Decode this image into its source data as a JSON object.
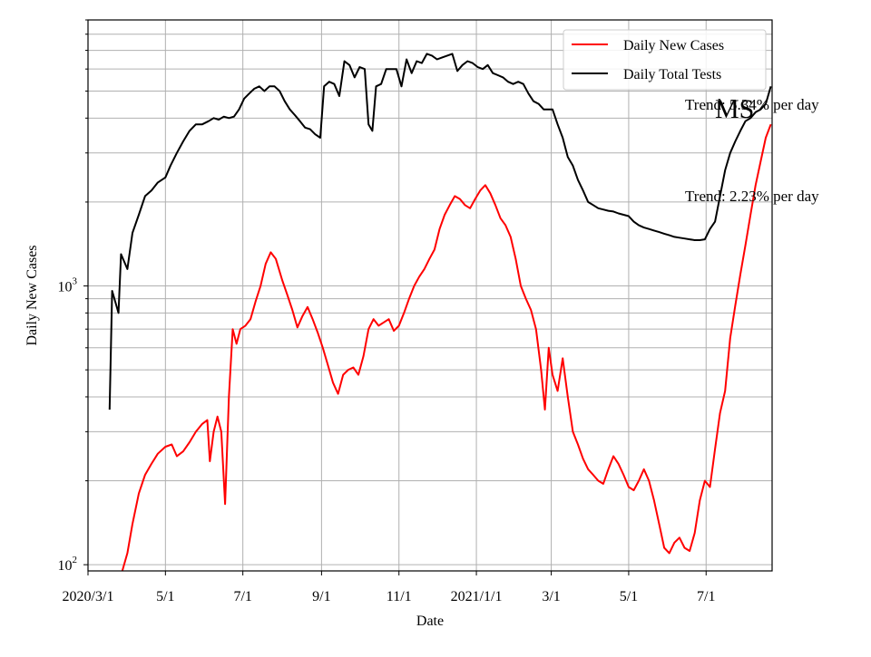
{
  "chart_data": {
    "type": "line",
    "title": "",
    "state_label": "MS",
    "xlabel": "Date",
    "ylabel": "Daily New Cases",
    "yscale": "log",
    "ylim": [
      95,
      9000
    ],
    "xlim": [
      "2020-03-01",
      "2021-08-22"
    ],
    "grid": true,
    "legend_position": "top-right",
    "x_ticks": [
      {
        "date": "2020-03-01",
        "label": "2020/3/1"
      },
      {
        "date": "2020-05-01",
        "label": "5/1"
      },
      {
        "date": "2020-07-01",
        "label": "7/1"
      },
      {
        "date": "2020-09-01",
        "label": "9/1"
      },
      {
        "date": "2020-11-01",
        "label": "11/1"
      },
      {
        "date": "2021-01-01",
        "label": "2021/1/1"
      },
      {
        "date": "2021-03-01",
        "label": "3/1"
      },
      {
        "date": "2021-05-01",
        "label": "5/1"
      },
      {
        "date": "2021-07-01",
        "label": "7/1"
      }
    ],
    "y_ticks": [
      {
        "value": 100,
        "label": "10",
        "exp": "2"
      },
      {
        "value": 1000,
        "label": "10",
        "exp": "3"
      }
    ],
    "annotations": [
      {
        "text": "Trend: 5.34% per day",
        "series": "Daily Total Tests"
      },
      {
        "text": "Trend: 2.23% per day",
        "series": "Daily New Cases"
      }
    ],
    "series": [
      {
        "name": "Daily New Cases",
        "color": "#ff0000",
        "points": [
          [
            "2020-03-28",
            95
          ],
          [
            "2020-04-01",
            110
          ],
          [
            "2020-04-05",
            140
          ],
          [
            "2020-04-10",
            180
          ],
          [
            "2020-04-15",
            210
          ],
          [
            "2020-04-20",
            230
          ],
          [
            "2020-04-25",
            250
          ],
          [
            "2020-05-01",
            265
          ],
          [
            "2020-05-06",
            270
          ],
          [
            "2020-05-10",
            245
          ],
          [
            "2020-05-15",
            255
          ],
          [
            "2020-05-20",
            275
          ],
          [
            "2020-05-25",
            300
          ],
          [
            "2020-05-30",
            320
          ],
          [
            "2020-06-03",
            330
          ],
          [
            "2020-06-05",
            235
          ],
          [
            "2020-06-08",
            300
          ],
          [
            "2020-06-11",
            340
          ],
          [
            "2020-06-14",
            300
          ],
          [
            "2020-06-17",
            165
          ],
          [
            "2020-06-20",
            400
          ],
          [
            "2020-06-23",
            700
          ],
          [
            "2020-06-26",
            620
          ],
          [
            "2020-06-29",
            700
          ],
          [
            "2020-07-03",
            720
          ],
          [
            "2020-07-07",
            760
          ],
          [
            "2020-07-11",
            880
          ],
          [
            "2020-07-15",
            1000
          ],
          [
            "2020-07-19",
            1200
          ],
          [
            "2020-07-23",
            1320
          ],
          [
            "2020-07-27",
            1250
          ],
          [
            "2020-08-01",
            1050
          ],
          [
            "2020-08-05",
            930
          ],
          [
            "2020-08-09",
            820
          ],
          [
            "2020-08-13",
            710
          ],
          [
            "2020-08-17",
            780
          ],
          [
            "2020-08-21",
            840
          ],
          [
            "2020-08-25",
            760
          ],
          [
            "2020-08-29",
            680
          ],
          [
            "2020-09-02",
            600
          ],
          [
            "2020-09-06",
            520
          ],
          [
            "2020-09-10",
            450
          ],
          [
            "2020-09-14",
            410
          ],
          [
            "2020-09-18",
            480
          ],
          [
            "2020-09-22",
            500
          ],
          [
            "2020-09-26",
            510
          ],
          [
            "2020-09-30",
            480
          ],
          [
            "2020-10-04",
            560
          ],
          [
            "2020-10-08",
            700
          ],
          [
            "2020-10-12",
            760
          ],
          [
            "2020-10-16",
            720
          ],
          [
            "2020-10-20",
            740
          ],
          [
            "2020-10-24",
            760
          ],
          [
            "2020-10-28",
            690
          ],
          [
            "2020-11-01",
            720
          ],
          [
            "2020-11-05",
            800
          ],
          [
            "2020-11-09",
            900
          ],
          [
            "2020-11-13",
            1000
          ],
          [
            "2020-11-17",
            1080
          ],
          [
            "2020-11-21",
            1150
          ],
          [
            "2020-11-25",
            1250
          ],
          [
            "2020-11-29",
            1350
          ],
          [
            "2020-12-03",
            1600
          ],
          [
            "2020-12-07",
            1800
          ],
          [
            "2020-12-11",
            1950
          ],
          [
            "2020-12-15",
            2100
          ],
          [
            "2020-12-19",
            2050
          ],
          [
            "2020-12-23",
            1950
          ],
          [
            "2020-12-27",
            1900
          ],
          [
            "2020-12-31",
            2050
          ],
          [
            "2021-01-04",
            2200
          ],
          [
            "2021-01-08",
            2300
          ],
          [
            "2021-01-12",
            2150
          ],
          [
            "2021-01-16",
            1950
          ],
          [
            "2021-01-20",
            1750
          ],
          [
            "2021-01-24",
            1650
          ],
          [
            "2021-01-28",
            1500
          ],
          [
            "2021-02-01",
            1250
          ],
          [
            "2021-02-05",
            1000
          ],
          [
            "2021-02-09",
            900
          ],
          [
            "2021-02-13",
            820
          ],
          [
            "2021-02-17",
            700
          ],
          [
            "2021-02-21",
            500
          ],
          [
            "2021-02-24",
            360
          ],
          [
            "2021-02-27",
            600
          ],
          [
            "2021-03-02",
            480
          ],
          [
            "2021-03-06",
            420
          ],
          [
            "2021-03-10",
            550
          ],
          [
            "2021-03-14",
            400
          ],
          [
            "2021-03-18",
            300
          ],
          [
            "2021-03-22",
            270
          ],
          [
            "2021-03-26",
            240
          ],
          [
            "2021-03-30",
            220
          ],
          [
            "2021-04-03",
            210
          ],
          [
            "2021-04-07",
            200
          ],
          [
            "2021-04-11",
            195
          ],
          [
            "2021-04-15",
            220
          ],
          [
            "2021-04-19",
            245
          ],
          [
            "2021-04-23",
            230
          ],
          [
            "2021-04-27",
            210
          ],
          [
            "2021-05-01",
            190
          ],
          [
            "2021-05-05",
            185
          ],
          [
            "2021-05-09",
            200
          ],
          [
            "2021-05-13",
            220
          ],
          [
            "2021-05-17",
            200
          ],
          [
            "2021-05-21",
            170
          ],
          [
            "2021-05-25",
            140
          ],
          [
            "2021-05-29",
            115
          ],
          [
            "2021-06-02",
            110
          ],
          [
            "2021-06-06",
            120
          ],
          [
            "2021-06-10",
            125
          ],
          [
            "2021-06-14",
            115
          ],
          [
            "2021-06-18",
            112
          ],
          [
            "2021-06-22",
            130
          ],
          [
            "2021-06-26",
            170
          ],
          [
            "2021-06-30",
            200
          ],
          [
            "2021-07-04",
            190
          ],
          [
            "2021-07-08",
            260
          ],
          [
            "2021-07-12",
            350
          ],
          [
            "2021-07-16",
            420
          ],
          [
            "2021-07-20",
            650
          ],
          [
            "2021-07-24",
            850
          ],
          [
            "2021-07-28",
            1100
          ],
          [
            "2021-08-01",
            1400
          ],
          [
            "2021-08-05",
            1800
          ],
          [
            "2021-08-09",
            2300
          ],
          [
            "2021-08-13",
            2800
          ],
          [
            "2021-08-17",
            3400
          ],
          [
            "2021-08-21",
            3800
          ]
        ]
      },
      {
        "name": "Daily Total Tests",
        "color": "#000000",
        "points": [
          [
            "2020-03-18",
            360
          ],
          [
            "2020-03-20",
            960
          ],
          [
            "2020-03-25",
            800
          ],
          [
            "2020-03-27",
            1300
          ],
          [
            "2020-04-01",
            1150
          ],
          [
            "2020-04-05",
            1550
          ],
          [
            "2020-04-10",
            1800
          ],
          [
            "2020-04-15",
            2100
          ],
          [
            "2020-04-20",
            2200
          ],
          [
            "2020-04-25",
            2350
          ],
          [
            "2020-05-01",
            2450
          ],
          [
            "2020-05-05",
            2700
          ],
          [
            "2020-05-10",
            3000
          ],
          [
            "2020-05-15",
            3300
          ],
          [
            "2020-05-20",
            3600
          ],
          [
            "2020-05-25",
            3800
          ],
          [
            "2020-05-30",
            3800
          ],
          [
            "2020-06-04",
            3900
          ],
          [
            "2020-06-08",
            4000
          ],
          [
            "2020-06-12",
            3950
          ],
          [
            "2020-06-16",
            4050
          ],
          [
            "2020-06-20",
            4000
          ],
          [
            "2020-06-24",
            4050
          ],
          [
            "2020-06-28",
            4300
          ],
          [
            "2020-07-02",
            4700
          ],
          [
            "2020-07-06",
            4900
          ],
          [
            "2020-07-10",
            5100
          ],
          [
            "2020-07-14",
            5200
          ],
          [
            "2020-07-18",
            5000
          ],
          [
            "2020-07-22",
            5200
          ],
          [
            "2020-07-26",
            5200
          ],
          [
            "2020-07-30",
            5000
          ],
          [
            "2020-08-03",
            4600
          ],
          [
            "2020-08-07",
            4300
          ],
          [
            "2020-08-11",
            4100
          ],
          [
            "2020-08-15",
            3900
          ],
          [
            "2020-08-19",
            3700
          ],
          [
            "2020-08-23",
            3650
          ],
          [
            "2020-08-27",
            3500
          ],
          [
            "2020-08-31",
            3400
          ],
          [
            "2020-09-03",
            5200
          ],
          [
            "2020-09-07",
            5400
          ],
          [
            "2020-09-11",
            5300
          ],
          [
            "2020-09-15",
            4800
          ],
          [
            "2020-09-19",
            6400
          ],
          [
            "2020-09-23",
            6200
          ],
          [
            "2020-09-27",
            5600
          ],
          [
            "2020-10-01",
            6100
          ],
          [
            "2020-10-05",
            6000
          ],
          [
            "2020-10-08",
            3800
          ],
          [
            "2020-10-11",
            3600
          ],
          [
            "2020-10-14",
            5200
          ],
          [
            "2020-10-18",
            5300
          ],
          [
            "2020-10-22",
            6000
          ],
          [
            "2020-10-26",
            6000
          ],
          [
            "2020-10-30",
            6000
          ],
          [
            "2020-11-03",
            5200
          ],
          [
            "2020-11-07",
            6500
          ],
          [
            "2020-11-11",
            5800
          ],
          [
            "2020-11-15",
            6400
          ],
          [
            "2020-11-19",
            6300
          ],
          [
            "2020-11-23",
            6800
          ],
          [
            "2020-11-27",
            6700
          ],
          [
            "2020-12-01",
            6500
          ],
          [
            "2020-12-05",
            6600
          ],
          [
            "2020-12-09",
            6700
          ],
          [
            "2020-12-13",
            6800
          ],
          [
            "2020-12-17",
            5900
          ],
          [
            "2020-12-21",
            6200
          ],
          [
            "2020-12-25",
            6400
          ],
          [
            "2020-12-29",
            6300
          ],
          [
            "2021-01-02",
            6100
          ],
          [
            "2021-01-06",
            6000
          ],
          [
            "2021-01-10",
            6200
          ],
          [
            "2021-01-14",
            5800
          ],
          [
            "2021-01-18",
            5700
          ],
          [
            "2021-01-22",
            5600
          ],
          [
            "2021-01-26",
            5400
          ],
          [
            "2021-01-30",
            5300
          ],
          [
            "2021-02-03",
            5400
          ],
          [
            "2021-02-07",
            5300
          ],
          [
            "2021-02-11",
            4900
          ],
          [
            "2021-02-15",
            4600
          ],
          [
            "2021-02-19",
            4500
          ],
          [
            "2021-02-23",
            4300
          ],
          [
            "2021-02-27",
            4300
          ],
          [
            "2021-03-02",
            4300
          ],
          [
            "2021-03-06",
            3800
          ],
          [
            "2021-03-10",
            3400
          ],
          [
            "2021-03-14",
            2900
          ],
          [
            "2021-03-18",
            2700
          ],
          [
            "2021-03-22",
            2400
          ],
          [
            "2021-03-26",
            2200
          ],
          [
            "2021-03-30",
            2000
          ],
          [
            "2021-04-03",
            1950
          ],
          [
            "2021-04-07",
            1900
          ],
          [
            "2021-04-11",
            1880
          ],
          [
            "2021-04-15",
            1860
          ],
          [
            "2021-04-19",
            1850
          ],
          [
            "2021-04-23",
            1820
          ],
          [
            "2021-04-27",
            1800
          ],
          [
            "2021-05-01",
            1780
          ],
          [
            "2021-05-05",
            1700
          ],
          [
            "2021-05-09",
            1650
          ],
          [
            "2021-05-13",
            1620
          ],
          [
            "2021-05-17",
            1600
          ],
          [
            "2021-05-21",
            1580
          ],
          [
            "2021-05-25",
            1560
          ],
          [
            "2021-05-29",
            1540
          ],
          [
            "2021-06-02",
            1520
          ],
          [
            "2021-06-06",
            1500
          ],
          [
            "2021-06-10",
            1490
          ],
          [
            "2021-06-14",
            1480
          ],
          [
            "2021-06-18",
            1470
          ],
          [
            "2021-06-22",
            1460
          ],
          [
            "2021-06-26",
            1460
          ],
          [
            "2021-06-30",
            1470
          ],
          [
            "2021-07-04",
            1600
          ],
          [
            "2021-07-08",
            1700
          ],
          [
            "2021-07-12",
            2100
          ],
          [
            "2021-07-16",
            2600
          ],
          [
            "2021-07-20",
            3000
          ],
          [
            "2021-07-24",
            3300
          ],
          [
            "2021-07-28",
            3600
          ],
          [
            "2021-08-01",
            3900
          ],
          [
            "2021-08-05",
            4000
          ],
          [
            "2021-08-09",
            4200
          ],
          [
            "2021-08-13",
            4300
          ],
          [
            "2021-08-17",
            4500
          ],
          [
            "2021-08-21",
            5200
          ]
        ]
      }
    ]
  }
}
